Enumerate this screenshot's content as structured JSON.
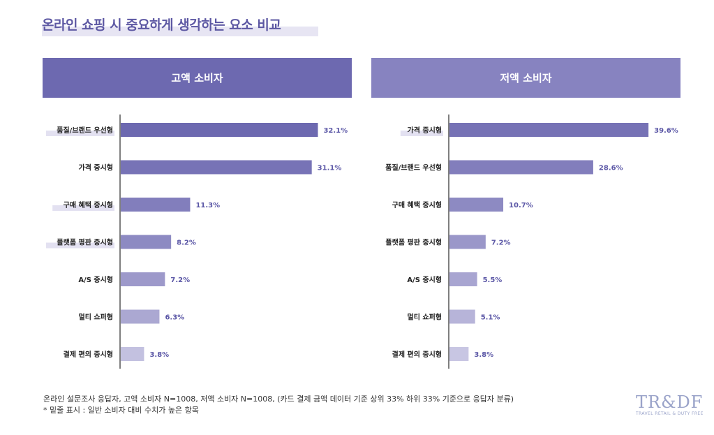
{
  "title": "온라인 쇼핑 시 중요하게 생각하는 요소 비교",
  "chart_data": [
    {
      "type": "bar",
      "orientation": "horizontal",
      "title": "고액 소비자",
      "categories": [
        "품질/브랜드 우선형",
        "가격 중시형",
        "구매 혜택 중시형",
        "플랫폼 평판 중시형",
        "A/S 중시형",
        "멀티 쇼퍼형",
        "결제 편의 중시형"
      ],
      "values": [
        32.1,
        31.1,
        11.3,
        8.2,
        7.2,
        6.3,
        3.8
      ],
      "value_labels": [
        "32.1%",
        "31.1%",
        "11.3%",
        "8.2%",
        "7.2%",
        "6.3%",
        "3.8%"
      ],
      "highlighted": [
        true,
        false,
        true,
        true,
        false,
        false,
        false
      ],
      "bar_colors": [
        "#6d69b0",
        "#7773b6",
        "#827ebc",
        "#8d8ac2",
        "#9d99ca",
        "#aba8d2",
        "#c3c1e0"
      ],
      "xlim": [
        0,
        40
      ],
      "grid": false
    },
    {
      "type": "bar",
      "orientation": "horizontal",
      "title": "저액 소비자",
      "categories": [
        "가격 중시형",
        "품질/브랜드 우선형",
        "구매 혜택 중시형",
        "플랫폼 평판 중시형",
        "A/S 중시형",
        "멀티 쇼퍼형",
        "결제 편의 중시형"
      ],
      "values": [
        39.6,
        28.6,
        10.7,
        7.2,
        5.5,
        5.1,
        3.8
      ],
      "value_labels": [
        "39.6%",
        "28.6%",
        "10.7%",
        "7.2%",
        "5.5%",
        "5.1%",
        "3.8%"
      ],
      "highlighted": [
        true,
        false,
        false,
        false,
        false,
        false,
        false
      ],
      "bar_colors": [
        "#7672b5",
        "#827ebc",
        "#8d8ac2",
        "#9a97c9",
        "#a8a5d1",
        "#b7b4d9",
        "#c8c6e3"
      ],
      "xlim": [
        0,
        40
      ],
      "grid": false
    }
  ],
  "footnote": {
    "line1": "온라인 설문조사 응답자, 고액 소비자 N=1008, 저액 소비자 N=1008, (카드 결제 금액 데이터 기준 상위 33% 하위 33% 기준으로 응답자 분류)",
    "line2": "* 밑줄 표시 : 일반 소비자 대비 수치가 높은 항목"
  },
  "logo": {
    "main": "TR&DF",
    "sub": "TRAVEL RETAIL & DUTY FREE"
  },
  "colors": {
    "title": "#5d58a3",
    "header_left": "#6d69b0",
    "header_right": "#8783c0",
    "highlight": "#e3e1f1",
    "axis": "#555555",
    "value_text": "#5b57a6"
  }
}
